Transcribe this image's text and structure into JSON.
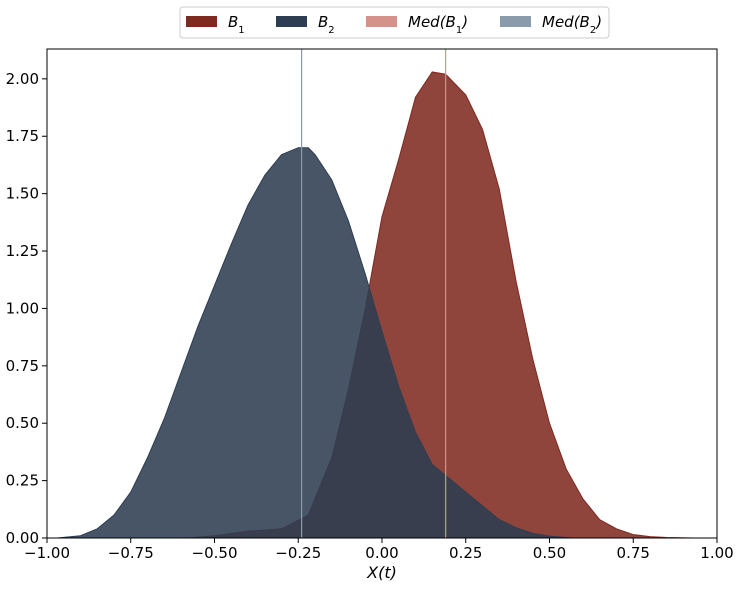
{
  "chart_data": {
    "type": "area",
    "xlabel": "X(t)",
    "xlim": [
      -1.0,
      1.0
    ],
    "ylim": [
      0,
      2.13
    ],
    "x_ticks": [
      "−1.00",
      "−0.75",
      "−0.50",
      "−0.25",
      "0.00",
      "0.25",
      "0.50",
      "0.75",
      "1.00"
    ],
    "y_ticks": [
      "0.00",
      "0.25",
      "0.50",
      "0.75",
      "1.00",
      "1.25",
      "1.50",
      "1.75",
      "2.00"
    ],
    "legend_position": "top-center",
    "grid": false,
    "series": [
      {
        "name": "B1",
        "label_base": "B",
        "label_sub": "1",
        "color": "#7f2a21",
        "x": [
          -0.58,
          -0.5,
          -0.4,
          -0.3,
          -0.22,
          -0.15,
          -0.1,
          -0.05,
          0.0,
          0.05,
          0.1,
          0.15,
          0.19,
          0.25,
          0.3,
          0.35,
          0.4,
          0.45,
          0.5,
          0.55,
          0.6,
          0.65,
          0.7,
          0.75,
          0.8,
          0.85,
          0.93
        ],
        "y": [
          0.0,
          0.01,
          0.03,
          0.04,
          0.1,
          0.35,
          0.65,
          1.0,
          1.4,
          1.65,
          1.92,
          2.03,
          2.02,
          1.93,
          1.78,
          1.52,
          1.12,
          0.78,
          0.5,
          0.3,
          0.17,
          0.08,
          0.04,
          0.015,
          0.006,
          0.002,
          0.0
        ]
      },
      {
        "name": "B2",
        "label_base": "B",
        "label_sub": "2",
        "color": "#2d3e52",
        "x": [
          -0.97,
          -0.9,
          -0.85,
          -0.8,
          -0.75,
          -0.7,
          -0.65,
          -0.6,
          -0.55,
          -0.5,
          -0.45,
          -0.4,
          -0.35,
          -0.3,
          -0.25,
          -0.22,
          -0.2,
          -0.15,
          -0.1,
          -0.05,
          0.0,
          0.05,
          0.1,
          0.15,
          0.2,
          0.25,
          0.3,
          0.35,
          0.4,
          0.45,
          0.5,
          0.55,
          0.57
        ],
        "y": [
          0.0,
          0.01,
          0.04,
          0.1,
          0.2,
          0.35,
          0.52,
          0.72,
          0.92,
          1.1,
          1.28,
          1.45,
          1.58,
          1.67,
          1.7,
          1.7,
          1.67,
          1.56,
          1.38,
          1.15,
          0.9,
          0.66,
          0.46,
          0.32,
          0.26,
          0.2,
          0.14,
          0.08,
          0.045,
          0.02,
          0.008,
          0.002,
          0.0
        ]
      }
    ],
    "medians": [
      {
        "name": "Med(B1)",
        "label_base": "Med(B",
        "label_sub": "1",
        "label_end": ")",
        "x": 0.19,
        "color": "#d4928a"
      },
      {
        "name": "Med(B2)",
        "label_base": "Med(B",
        "label_sub": "2",
        "label_end": ")",
        "x": -0.24,
        "color": "#8a9bab"
      }
    ]
  }
}
